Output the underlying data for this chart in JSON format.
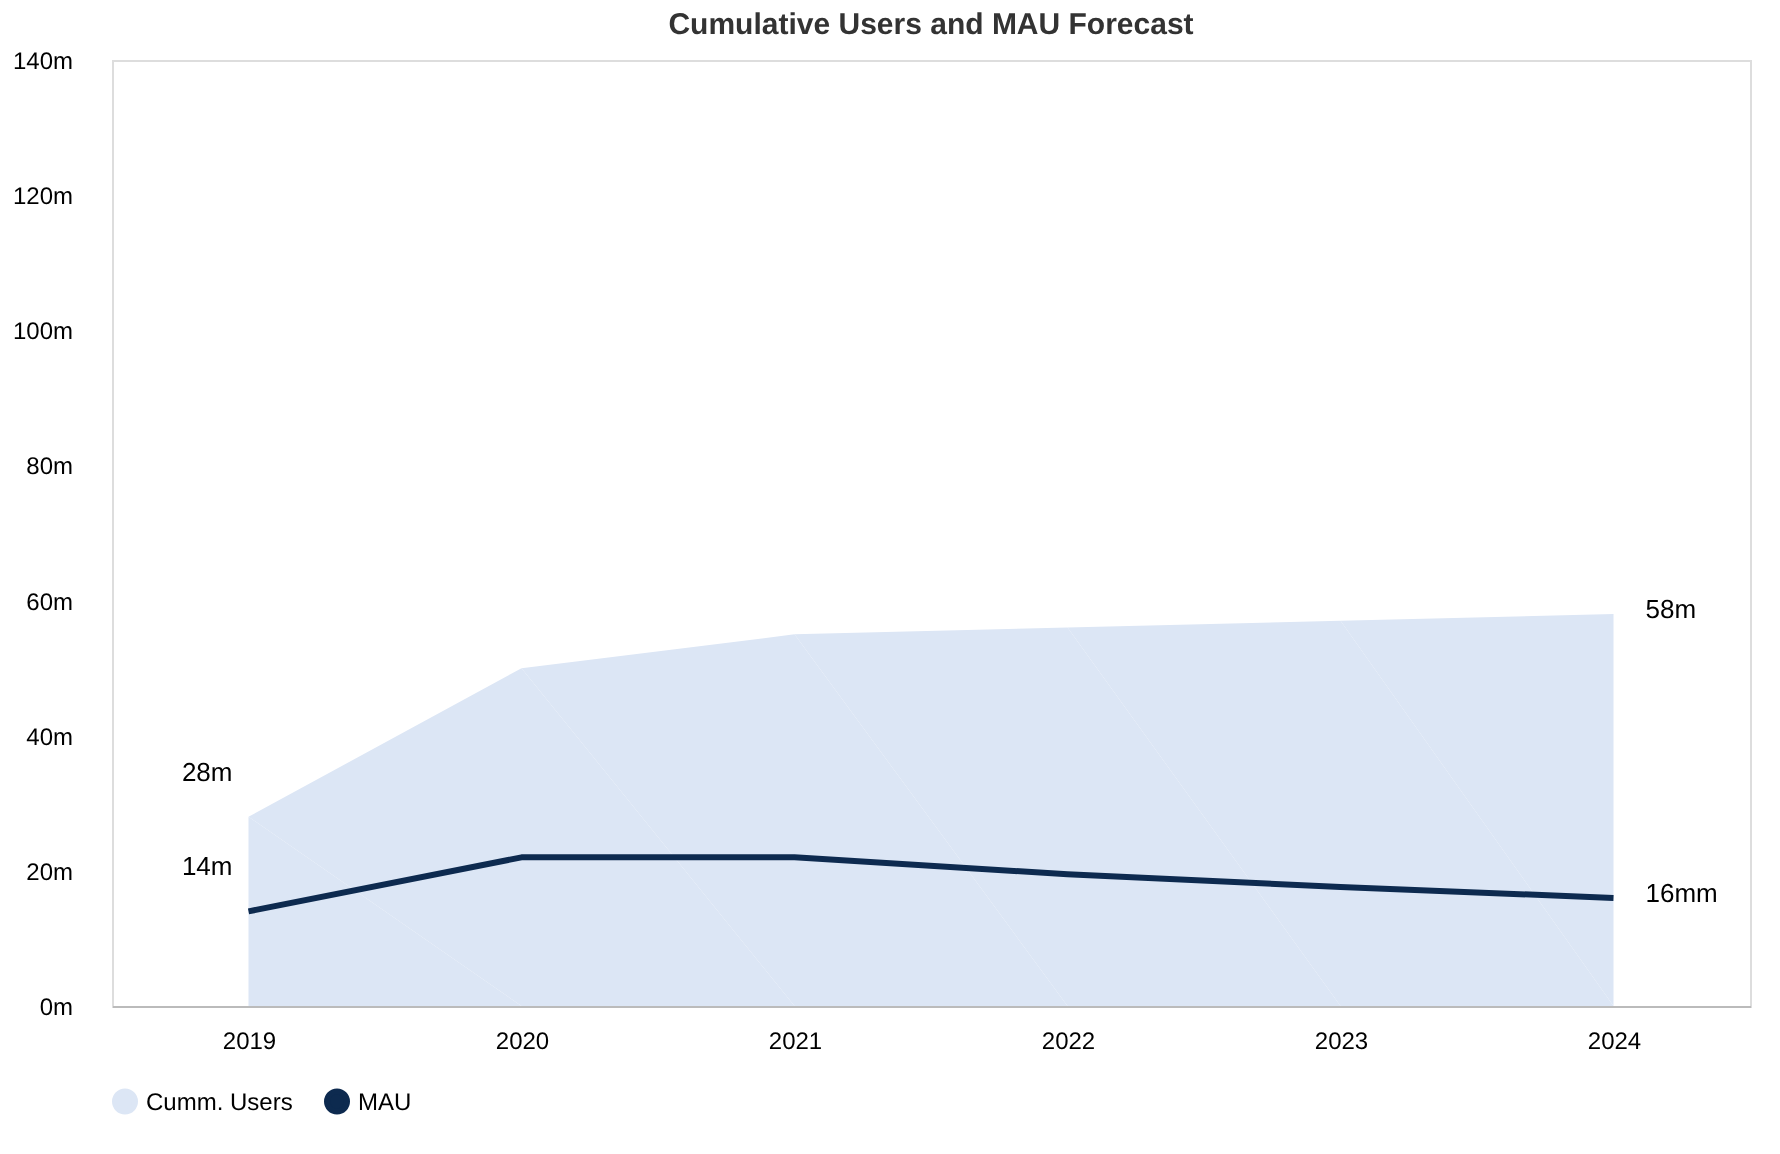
{
  "chart_data": {
    "type": "area",
    "title": "Cumulative Users and MAU Forecast",
    "categories": [
      "2019",
      "2020",
      "2021",
      "2022",
      "2023",
      "2024"
    ],
    "series": [
      {
        "name": "Cumm. Users",
        "color": "#dce6f5",
        "values": [
          28,
          50,
          55,
          56,
          57,
          58
        ],
        "value_labels": [
          "28m",
          null,
          null,
          null,
          null,
          "58m"
        ]
      },
      {
        "name": "MAU",
        "type": "line",
        "color": "#0d2a4f",
        "values": [
          14,
          22,
          22,
          19.5,
          17.6,
          16
        ],
        "value_labels": [
          "14m",
          null,
          null,
          null,
          null,
          "16mm"
        ]
      }
    ],
    "ylim": [
      0,
      140
    ],
    "yticks": [
      {
        "value": 0,
        "label": "0m"
      },
      {
        "value": 20,
        "label": "20m"
      },
      {
        "value": 40,
        "label": "40m"
      },
      {
        "value": 60,
        "label": "60m"
      },
      {
        "value": 80,
        "label": "80m"
      },
      {
        "value": 100,
        "label": "100m"
      },
      {
        "value": 120,
        "label": "120m"
      },
      {
        "value": 140,
        "label": "140m"
      }
    ],
    "grid": false,
    "legend": "bottom",
    "line_style": "solid",
    "marker": "none"
  }
}
